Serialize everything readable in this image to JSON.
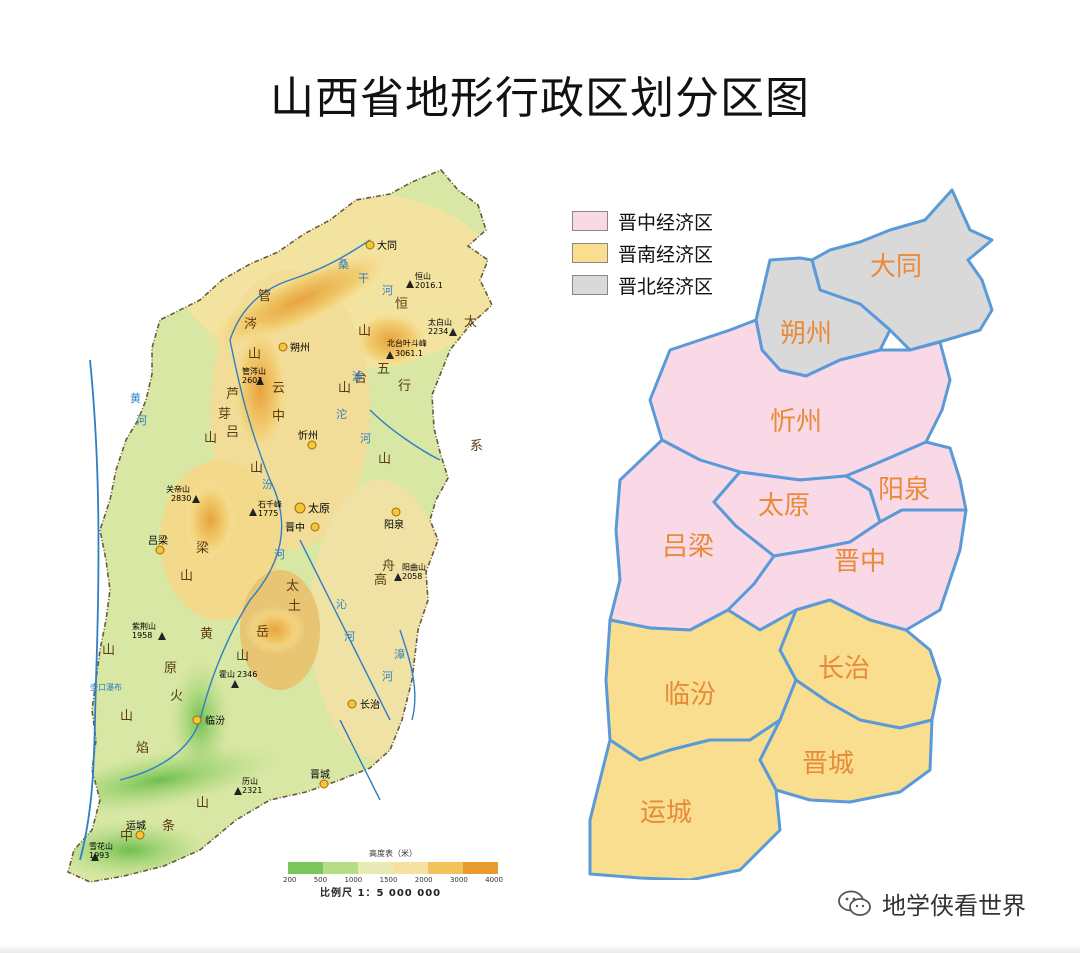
{
  "title": "山西省地形行政区划分区图",
  "legend": [
    {
      "label": "晋中经济区",
      "color": "#fad9e6"
    },
    {
      "label": "晋南经济区",
      "color": "#f9de90"
    },
    {
      "label": "晋北经济区",
      "color": "#d9d9d9"
    }
  ],
  "admin_regions": [
    {
      "name": "大同",
      "zone": "晋北经济区"
    },
    {
      "name": "朔州",
      "zone": "晋北经济区"
    },
    {
      "name": "忻州",
      "zone": "晋中经济区"
    },
    {
      "name": "太原",
      "zone": "晋中经济区"
    },
    {
      "name": "阳泉",
      "zone": "晋中经济区"
    },
    {
      "name": "吕梁",
      "zone": "晋中经济区"
    },
    {
      "name": "晋中",
      "zone": "晋中经济区"
    },
    {
      "name": "长治",
      "zone": "晋南经济区"
    },
    {
      "name": "临汾",
      "zone": "晋南经济区"
    },
    {
      "name": "晋城",
      "zone": "晋南经济区"
    },
    {
      "name": "运城",
      "zone": "晋南经济区"
    }
  ],
  "terrain": {
    "cities": [
      "大同",
      "朔州",
      "忻州",
      "太原",
      "晋中",
      "阳泉",
      "吕梁",
      "长治",
      "临汾",
      "晋城",
      "运城"
    ],
    "peaks": [
      {
        "name": "恒山",
        "elev": "2016.1"
      },
      {
        "name": "太白山",
        "elev": "2234"
      },
      {
        "name": "北台叶斗峰",
        "elev": "3061.1"
      },
      {
        "name": "管涔山",
        "elev": "2603"
      },
      {
        "name": "关帝山",
        "elev": "2830"
      },
      {
        "name": "石千峰",
        "elev": "1775"
      },
      {
        "name": "阳曲山",
        "elev": "2058"
      },
      {
        "name": "紫荆山",
        "elev": "1958"
      },
      {
        "name": "霍山",
        "elev": "2346"
      },
      {
        "name": "历山",
        "elev": "2321"
      },
      {
        "name": "雪花山",
        "elev": "1993"
      }
    ],
    "range_chars": [
      "管",
      "涔",
      "山",
      "芦",
      "芽",
      "山",
      "吕",
      "梁",
      "山",
      "恒",
      "山",
      "五",
      "台",
      "山",
      "太",
      "行",
      "山",
      "太",
      "岳",
      "山",
      "中",
      "条",
      "山",
      "云",
      "中",
      "山",
      "系",
      "舟",
      "山",
      "黄",
      "土",
      "高",
      "原",
      "火",
      "焰",
      "山"
    ],
    "river_chars": [
      "黄",
      "河",
      "汾",
      "河",
      "桑",
      "干",
      "河",
      "滹",
      "沱",
      "河",
      "漳",
      "河",
      "沁",
      "河"
    ],
    "river_label": "壶口瀑布"
  },
  "elevation_scale": {
    "title": "高度表（米）",
    "ticks": [
      "200",
      "500",
      "1000",
      "1500",
      "2000",
      "3000",
      "4000"
    ],
    "colors": [
      "#7cc55a",
      "#b7dd86",
      "#e8ecb4",
      "#f6e1a0",
      "#f1c35a",
      "#e89a2c"
    ]
  },
  "scale_ratio": "比例尺 1：5 000 000",
  "watermark": "地学侠看世界"
}
